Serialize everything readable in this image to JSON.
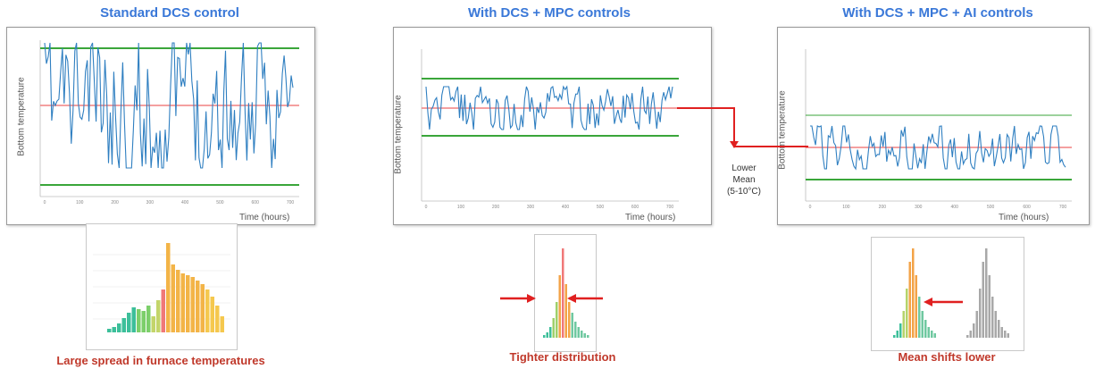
{
  "panels": [
    {
      "title": "Standard DCS control",
      "ylabel": "Bottom temperature",
      "xlabel": "Time (hours)",
      "caption": "Large spread in furnace temperatures"
    },
    {
      "title": "With DCS + MPC controls",
      "ylabel": "Bottom temperature",
      "xlabel": "Time (hours)",
      "caption": "Tighter distribution"
    },
    {
      "title": "With DCS + MPC + AI controls",
      "ylabel": "Bottom temperature",
      "xlabel": "Time (hours)",
      "caption": "Mean shifts lower"
    }
  ],
  "x_ticks": [
    "0",
    "100",
    "200",
    "300",
    "400",
    "500",
    "600",
    "700"
  ],
  "annotation": {
    "line1": "Lower",
    "line2": "Mean",
    "line3": "(5-10°C)"
  },
  "colors": {
    "title": "#3a78d8",
    "series": "#2f7fc1",
    "limit": "#3aa63a",
    "mean": "#f08080",
    "arrow": "#e02020",
    "caption": "#c0392b"
  }
}
